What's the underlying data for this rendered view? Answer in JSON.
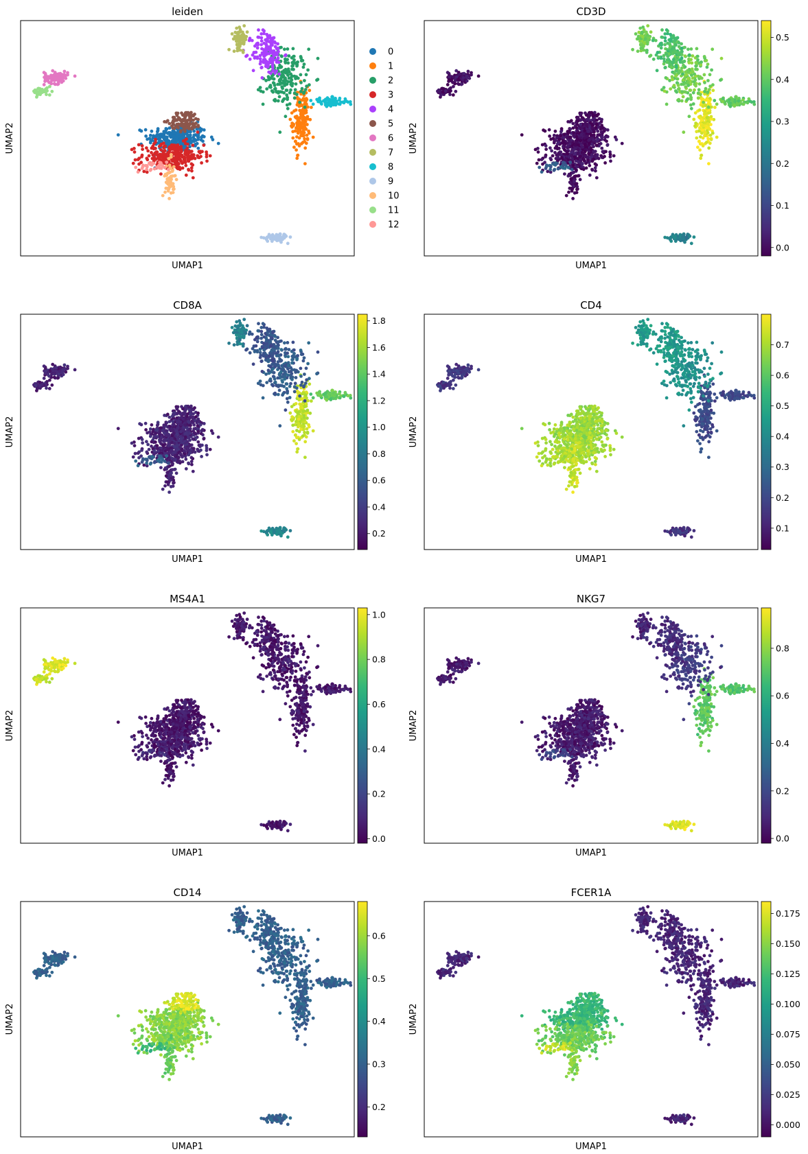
{
  "figure": {
    "x_axis_label": "UMAP1",
    "y_axis_label": "UMAP2"
  },
  "colormap": [
    "#440154",
    "#482878",
    "#3e4989",
    "#31688e",
    "#26828e",
    "#1f9e89",
    "#35b779",
    "#6ece58",
    "#b5de2b",
    "#fde725"
  ],
  "clusters": [
    {
      "id": "0",
      "color": "#1f77b4",
      "center": [
        -2.0,
        0.6
      ],
      "spread": [
        0.75,
        0.35
      ],
      "n": 280
    },
    {
      "id": "1",
      "color": "#ff7f0e",
      "center": [
        4.3,
        1.5
      ],
      "spread": [
        0.22,
        0.75
      ],
      "n": 160
    },
    {
      "id": "2",
      "color": "#279e68",
      "center": [
        3.5,
        3.6
      ],
      "spread": [
        0.55,
        0.7
      ],
      "n": 200
    },
    {
      "id": "3",
      "color": "#d62728",
      "center": [
        -2.3,
        -0.3
      ],
      "spread": [
        0.8,
        0.35
      ],
      "n": 270
    },
    {
      "id": "4",
      "color": "#aa40fc",
      "center": [
        2.6,
        4.8
      ],
      "spread": [
        0.4,
        0.55
      ],
      "n": 150
    },
    {
      "id": "5",
      "color": "#8c564b",
      "center": [
        -1.6,
        1.45
      ],
      "spread": [
        0.4,
        0.25
      ],
      "n": 110
    },
    {
      "id": "6",
      "color": "#e377c2",
      "center": [
        -8.2,
        3.6
      ],
      "spread": [
        0.3,
        0.15
      ],
      "n": 90
    },
    {
      "id": "7",
      "color": "#b5bd61",
      "center": [
        1.2,
        5.5
      ],
      "spread": [
        0.18,
        0.25
      ],
      "n": 70
    },
    {
      "id": "8",
      "color": "#17becf",
      "center": [
        5.8,
        2.4
      ],
      "spread": [
        0.45,
        0.1
      ],
      "n": 80
    },
    {
      "id": "9",
      "color": "#aec7e8",
      "center": [
        3.0,
        -4.3
      ],
      "spread": [
        0.3,
        0.1
      ],
      "n": 80
    },
    {
      "id": "10",
      "color": "#ffbb78",
      "center": [
        -2.4,
        -1.4
      ],
      "spread": [
        0.12,
        0.45
      ],
      "n": 60
    },
    {
      "id": "11",
      "color": "#98df8a",
      "center": [
        -8.9,
        2.9
      ],
      "spread": [
        0.25,
        0.1
      ],
      "n": 45
    },
    {
      "id": "12",
      "color": "#ff9896",
      "center": [
        -3.3,
        -0.8
      ],
      "spread": [
        0.45,
        0.12
      ],
      "n": 30
    }
  ],
  "chart_data": [
    {
      "type": "scatter",
      "title": "leiden",
      "xlabel": "UMAP1",
      "ylabel": "UMAP2",
      "color_by": "category",
      "legend": [
        "0",
        "1",
        "2",
        "3",
        "4",
        "5",
        "6",
        "7",
        "8",
        "9",
        "10",
        "11",
        "12"
      ],
      "legend_position": "right-outside"
    },
    {
      "type": "scatter",
      "title": "CD3D",
      "xlabel": "UMAP1",
      "ylabel": "UMAP2",
      "color_by": "continuous",
      "vmin": -0.02,
      "vmax": 0.54,
      "colorbar_ticks": [
        "0.0",
        "0.1",
        "0.2",
        "0.3",
        "0.4",
        "0.5"
      ],
      "colorbar_tick_values": [
        0.0,
        0.1,
        0.2,
        0.3,
        0.4,
        0.5
      ],
      "cluster_values": {
        "0": 0.0,
        "1": 0.52,
        "2": 0.42,
        "3": 0.0,
        "4": 0.38,
        "5": 0.0,
        "6": 0.0,
        "7": 0.42,
        "8": 0.4,
        "9": 0.22,
        "10": 0.0,
        "11": 0.0,
        "12": 0.15
      }
    },
    {
      "type": "scatter",
      "title": "CD8A",
      "xlabel": "UMAP1",
      "ylabel": "UMAP2",
      "color_by": "continuous",
      "vmin": 0.08,
      "vmax": 1.85,
      "colorbar_ticks": [
        "0.2",
        "0.4",
        "0.6",
        "0.8",
        "1.0",
        "1.2",
        "1.4",
        "1.6",
        "1.8"
      ],
      "colorbar_tick_values": [
        0.2,
        0.4,
        0.6,
        0.8,
        1.0,
        1.2,
        1.4,
        1.6,
        1.8
      ],
      "cluster_values": {
        "0": 0.25,
        "1": 1.7,
        "2": 0.6,
        "3": 0.25,
        "4": 0.55,
        "5": 0.25,
        "6": 0.25,
        "7": 0.85,
        "8": 1.4,
        "9": 0.9,
        "10": 0.25,
        "11": 0.25,
        "12": 0.6
      }
    },
    {
      "type": "scatter",
      "title": "CD4",
      "xlabel": "UMAP1",
      "ylabel": "UMAP2",
      "color_by": "continuous",
      "vmin": 0.03,
      "vmax": 0.8,
      "colorbar_ticks": [
        "0.1",
        "0.2",
        "0.3",
        "0.4",
        "0.5",
        "0.6",
        "0.7"
      ],
      "colorbar_tick_values": [
        0.1,
        0.2,
        0.3,
        0.4,
        0.5,
        0.6,
        0.7
      ],
      "cluster_values": {
        "0": 0.68,
        "1": 0.2,
        "2": 0.42,
        "3": 0.7,
        "4": 0.45,
        "5": 0.68,
        "6": 0.15,
        "7": 0.45,
        "8": 0.2,
        "9": 0.15,
        "10": 0.74,
        "11": 0.15,
        "12": 0.7
      }
    },
    {
      "type": "scatter",
      "title": "MS4A1",
      "xlabel": "UMAP1",
      "ylabel": "UMAP2",
      "color_by": "continuous",
      "vmin": -0.02,
      "vmax": 1.03,
      "colorbar_ticks": [
        "0.0",
        "0.2",
        "0.4",
        "0.6",
        "0.8",
        "1.0"
      ],
      "colorbar_tick_values": [
        0.0,
        0.2,
        0.4,
        0.6,
        0.8,
        1.0
      ],
      "cluster_values": {
        "0": 0.05,
        "1": 0.05,
        "2": 0.05,
        "3": 0.05,
        "4": 0.05,
        "5": 0.05,
        "6": 0.98,
        "7": 0.05,
        "8": 0.05,
        "9": 0.05,
        "10": 0.05,
        "11": 0.95,
        "12": 0.1
      }
    },
    {
      "type": "scatter",
      "title": "NKG7",
      "xlabel": "UMAP1",
      "ylabel": "UMAP2",
      "color_by": "continuous",
      "vmin": -0.02,
      "vmax": 0.97,
      "colorbar_ticks": [
        "0.0",
        "0.2",
        "0.4",
        "0.6",
        "0.8"
      ],
      "colorbar_tick_values": [
        0.0,
        0.2,
        0.4,
        0.6,
        0.8
      ],
      "cluster_values": {
        "0": 0.05,
        "1": 0.72,
        "2": 0.15,
        "3": 0.05,
        "4": 0.1,
        "5": 0.05,
        "6": 0.05,
        "7": 0.08,
        "8": 0.7,
        "9": 0.92,
        "10": 0.05,
        "11": 0.05,
        "12": 0.2
      }
    },
    {
      "type": "scatter",
      "title": "CD14",
      "xlabel": "UMAP1",
      "ylabel": "UMAP2",
      "color_by": "continuous",
      "vmin": 0.13,
      "vmax": 0.68,
      "colorbar_ticks": [
        "0.2",
        "0.3",
        "0.4",
        "0.5",
        "0.6"
      ],
      "colorbar_tick_values": [
        0.2,
        0.3,
        0.4,
        0.5,
        0.6
      ],
      "cluster_values": {
        "0": 0.58,
        "1": 0.3,
        "2": 0.3,
        "3": 0.58,
        "4": 0.3,
        "5": 0.65,
        "6": 0.3,
        "7": 0.3,
        "8": 0.3,
        "9": 0.3,
        "10": 0.55,
        "11": 0.3,
        "12": 0.5
      }
    },
    {
      "type": "scatter",
      "title": "FCER1A",
      "xlabel": "UMAP1",
      "ylabel": "UMAP2",
      "color_by": "continuous",
      "vmin": -0.01,
      "vmax": 0.185,
      "colorbar_ticks": [
        "0.000",
        "0.025",
        "0.050",
        "0.075",
        "0.100",
        "0.125",
        "0.150",
        "0.175"
      ],
      "colorbar_tick_values": [
        0.0,
        0.025,
        0.05,
        0.075,
        0.1,
        0.125,
        0.15,
        0.175
      ],
      "cluster_values": {
        "0": 0.12,
        "1": 0.01,
        "2": 0.01,
        "3": 0.14,
        "4": 0.01,
        "5": 0.12,
        "6": 0.01,
        "7": 0.01,
        "8": 0.01,
        "9": 0.01,
        "10": 0.15,
        "11": 0.01,
        "12": 0.17
      }
    }
  ]
}
